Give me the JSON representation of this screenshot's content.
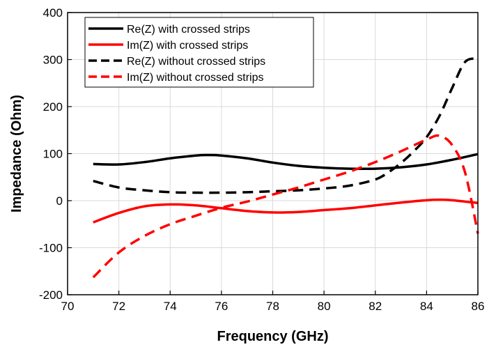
{
  "chart_data": {
    "type": "line",
    "xlabel": "Frequency (GHz)",
    "ylabel": "Impedance (Ohm)",
    "xlim": [
      70,
      86
    ],
    "ylim": [
      -200,
      400
    ],
    "xticks": [
      70,
      72,
      74,
      76,
      78,
      80,
      82,
      84,
      86
    ],
    "yticks": [
      -200,
      -100,
      0,
      100,
      200,
      300,
      400
    ],
    "grid": true,
    "legend_position": "top-left",
    "series": [
      {
        "name": "Re(Z) with crossed strips",
        "color": "#000000",
        "dash": "solid",
        "x": [
          71,
          72,
          73,
          74,
          75,
          75.5,
          76,
          77,
          78,
          79,
          80,
          81,
          82,
          83,
          84,
          85,
          86
        ],
        "y": [
          78,
          77,
          82,
          90,
          96,
          97,
          96,
          90,
          81,
          74,
          70,
          68,
          68,
          71,
          77,
          87,
          99
        ]
      },
      {
        "name": "Im(Z) with crossed strips",
        "color": "#ff0000",
        "dash": "solid",
        "x": [
          71,
          72,
          73,
          74,
          75,
          76,
          77,
          78,
          79,
          80,
          81,
          82,
          83,
          84,
          84.5,
          85,
          86
        ],
        "y": [
          -46,
          -26,
          -12,
          -8,
          -10,
          -16,
          -22,
          -25,
          -24,
          -20,
          -16,
          -10,
          -4,
          1,
          2,
          1,
          -5
        ]
      },
      {
        "name": "Re(Z) without crossed strips",
        "color": "#000000",
        "dash": "dashed",
        "x": [
          71,
          72,
          73,
          74,
          75,
          76,
          77,
          78,
          79,
          80,
          81,
          82,
          82.5,
          83,
          83.5,
          84,
          84.5,
          85,
          85.5,
          86
        ],
        "y": [
          42,
          28,
          22,
          18,
          17,
          17,
          18,
          20,
          22,
          26,
          32,
          45,
          60,
          80,
          105,
          135,
          180,
          240,
          295,
          302
        ]
      },
      {
        "name": "Im(Z) without crossed strips",
        "color": "#ff0000",
        "dash": "dashed",
        "x": [
          71,
          72,
          73,
          74,
          75,
          76,
          77,
          78,
          79,
          80,
          81,
          82,
          83,
          84,
          84.5,
          85,
          85.5,
          86
        ],
        "y": [
          -163,
          -110,
          -75,
          -50,
          -32,
          -15,
          -2,
          13,
          28,
          45,
          62,
          82,
          105,
          130,
          138,
          118,
          60,
          -70
        ]
      }
    ]
  }
}
